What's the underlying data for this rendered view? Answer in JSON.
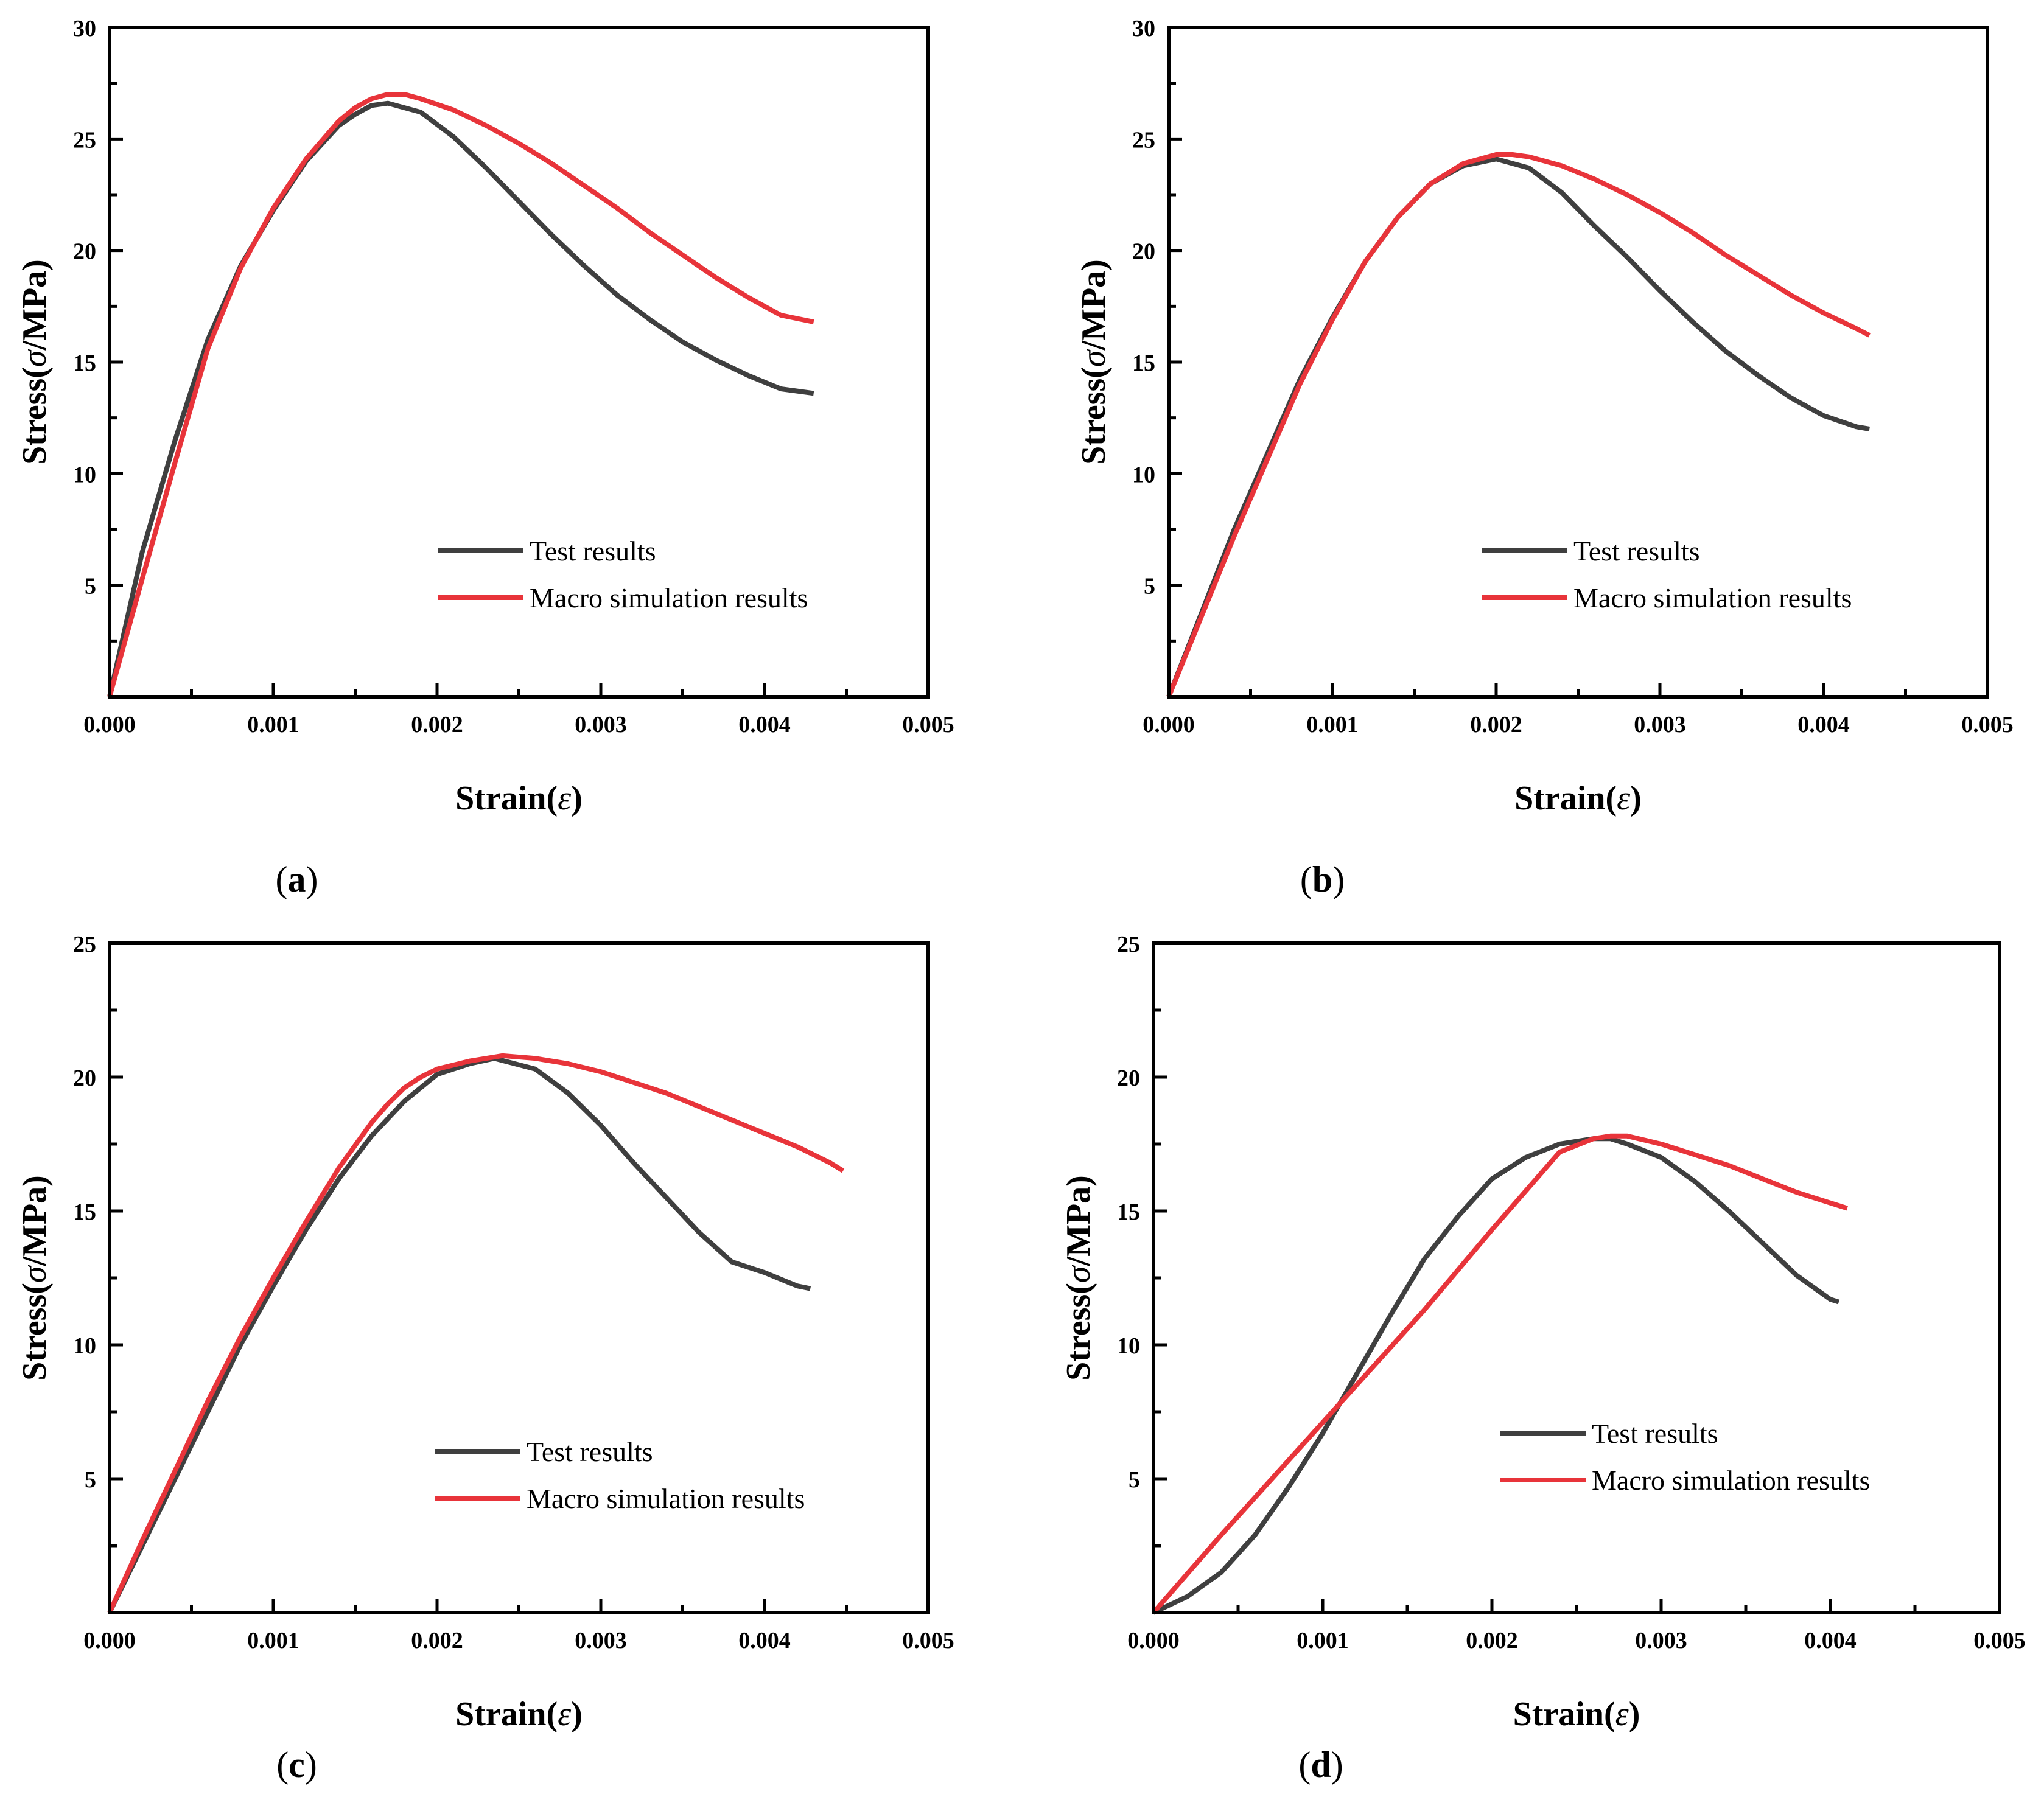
{
  "colors": {
    "test": "#3f3f3f",
    "macro": "#e8343a",
    "frame": "#000000"
  },
  "chart_data": [
    {
      "type": "line",
      "panel": "(a)",
      "panel_letter": "a",
      "xlabel": "Strain(",
      "xlabel_symbol": "ε",
      "ylabel": "Stress(",
      "ylabel_symbol": "σ",
      "ylabel_unit": "/MPa)",
      "xlim": [
        0,
        0.005
      ],
      "ylim": [
        0,
        30
      ],
      "xticks": [
        "0.000",
        "0.001",
        "0.002",
        "0.003",
        "0.004",
        "0.005"
      ],
      "yticks": [
        "5",
        "10",
        "15",
        "20",
        "25",
        "30"
      ],
      "legend_position": "center-right",
      "series": [
        {
          "name": "Test results",
          "color": "#3f3f3f",
          "x": [
            0,
            0.0002,
            0.0004,
            0.0006,
            0.0008,
            0.001,
            0.0012,
            0.0014,
            0.0015,
            0.0016,
            0.0017,
            0.0019,
            0.0021,
            0.0023,
            0.0025,
            0.0027,
            0.0029,
            0.0031,
            0.0033,
            0.0035,
            0.0037,
            0.0039,
            0.0041,
            0.0043
          ],
          "y": [
            0,
            6.5,
            11.5,
            16,
            19.3,
            21.8,
            24,
            25.6,
            26.1,
            26.5,
            26.6,
            26.2,
            25.1,
            23.7,
            22.2,
            20.7,
            19.3,
            18,
            16.9,
            15.9,
            15.1,
            14.4,
            13.8,
            13.6
          ]
        },
        {
          "name": "Macro simulation results",
          "color": "#e8343a",
          "x": [
            0,
            0.0002,
            0.0004,
            0.0006,
            0.0008,
            0.001,
            0.0012,
            0.0014,
            0.0015,
            0.0016,
            0.0017,
            0.0018,
            0.0019,
            0.0021,
            0.0023,
            0.0025,
            0.0027,
            0.0029,
            0.0031,
            0.0033,
            0.0035,
            0.0037,
            0.0039,
            0.0041,
            0.0043
          ],
          "y": [
            0,
            5.3,
            10.5,
            15.6,
            19.2,
            21.9,
            24.1,
            25.8,
            26.4,
            26.8,
            27,
            27,
            26.8,
            26.3,
            25.6,
            24.8,
            23.9,
            22.9,
            21.9,
            20.8,
            19.8,
            18.8,
            17.9,
            17.1,
            16.8
          ]
        }
      ]
    },
    {
      "type": "line",
      "panel": "(b)",
      "panel_letter": "b",
      "xlabel": "Strain(",
      "xlabel_symbol": "ε",
      "ylabel": "Stress(",
      "ylabel_symbol": "σ",
      "ylabel_unit": "/MPa)",
      "xlim": [
        0,
        0.005
      ],
      "ylim": [
        0,
        30
      ],
      "xticks": [
        "0.000",
        "0.001",
        "0.002",
        "0.003",
        "0.004",
        "0.005"
      ],
      "yticks": [
        "5",
        "10",
        "15",
        "20",
        "25",
        "30"
      ],
      "legend_position": "center-right",
      "series": [
        {
          "name": "Test results",
          "color": "#3f3f3f",
          "x": [
            0,
            0.0004,
            0.0008,
            0.001,
            0.0012,
            0.0014,
            0.0016,
            0.0018,
            0.002,
            0.0022,
            0.0024,
            0.0026,
            0.0028,
            0.003,
            0.0032,
            0.0034,
            0.0036,
            0.0038,
            0.004,
            0.0042,
            0.00428
          ],
          "y": [
            0,
            7.5,
            14.2,
            17,
            19.5,
            21.5,
            23,
            23.8,
            24.1,
            23.7,
            22.6,
            21.1,
            19.7,
            18.2,
            16.8,
            15.5,
            14.4,
            13.4,
            12.6,
            12.1,
            12.0
          ]
        },
        {
          "name": "Macro simulation results",
          "color": "#e8343a",
          "x": [
            0,
            0.0004,
            0.0008,
            0.001,
            0.0012,
            0.0014,
            0.0016,
            0.0018,
            0.002,
            0.0021,
            0.0022,
            0.0024,
            0.0026,
            0.0028,
            0.003,
            0.0032,
            0.0034,
            0.0036,
            0.0038,
            0.004,
            0.0042,
            0.00428
          ],
          "y": [
            0,
            7.2,
            14,
            16.9,
            19.5,
            21.5,
            23,
            23.9,
            24.3,
            24.3,
            24.2,
            23.8,
            23.2,
            22.5,
            21.7,
            20.8,
            19.8,
            18.9,
            18,
            17.2,
            16.5,
            16.2
          ]
        }
      ]
    },
    {
      "type": "line",
      "panel": "(c)",
      "panel_letter": "c",
      "xlabel": "Strain(",
      "xlabel_symbol": "ε",
      "ylabel": "Stress(",
      "ylabel_symbol": "σ",
      "ylabel_unit": "/MPa)",
      "xlim": [
        0,
        0.005
      ],
      "ylim": [
        0,
        25
      ],
      "xticks": [
        "0.000",
        "0.001",
        "0.002",
        "0.003",
        "0.004",
        "0.005"
      ],
      "yticks": [
        "5",
        "10",
        "15",
        "20",
        "25"
      ],
      "legend_position": "center-right",
      "series": [
        {
          "name": "Test results",
          "color": "#3f3f3f",
          "x": [
            0,
            0.0002,
            0.0004,
            0.0006,
            0.0008,
            0.001,
            0.0012,
            0.0014,
            0.0016,
            0.0018,
            0.002,
            0.0022,
            0.00235,
            0.0026,
            0.0028,
            0.003,
            0.0032,
            0.0034,
            0.0036,
            0.0038,
            0.004,
            0.0042,
            0.00428
          ],
          "y": [
            0,
            2.5,
            5,
            7.5,
            10,
            12.2,
            14.3,
            16.2,
            17.8,
            19.1,
            20.1,
            20.5,
            20.7,
            20.3,
            19.4,
            18.2,
            16.8,
            15.5,
            14.2,
            13.1,
            12.7,
            12.2,
            12.1
          ]
        },
        {
          "name": "Macro simulation results",
          "color": "#e8343a",
          "x": [
            0,
            0.0002,
            0.0004,
            0.0006,
            0.0008,
            0.001,
            0.0012,
            0.0014,
            0.0016,
            0.0017,
            0.0018,
            0.0019,
            0.002,
            0.0022,
            0.0024,
            0.0026,
            0.0028,
            0.003,
            0.0032,
            0.0034,
            0.0036,
            0.0038,
            0.004,
            0.0042,
            0.0044,
            0.00448
          ],
          "y": [
            0,
            2.7,
            5.3,
            7.9,
            10.3,
            12.5,
            14.6,
            16.6,
            18.3,
            19,
            19.6,
            20,
            20.3,
            20.6,
            20.8,
            20.7,
            20.5,
            20.2,
            19.8,
            19.4,
            18.9,
            18.4,
            17.9,
            17.4,
            16.8,
            16.5
          ]
        }
      ]
    },
    {
      "type": "line",
      "panel": "(d)",
      "panel_letter": "d",
      "xlabel": "Strain(",
      "xlabel_symbol": "ε",
      "ylabel": "Stress(",
      "ylabel_symbol": "σ",
      "ylabel_unit": "/MPa)",
      "xlim": [
        0,
        0.005
      ],
      "ylim": [
        0,
        25
      ],
      "xticks": [
        "0.000",
        "0.001",
        "0.002",
        "0.003",
        "0.004",
        "0.005"
      ],
      "yticks": [
        "5",
        "10",
        "15",
        "20",
        "25"
      ],
      "legend_position": "center-right",
      "series": [
        {
          "name": "Test results",
          "color": "#3f3f3f",
          "x": [
            0,
            0.0002,
            0.0004,
            0.0006,
            0.0008,
            0.001,
            0.0012,
            0.0014,
            0.0016,
            0.0018,
            0.002,
            0.0022,
            0.0024,
            0.0026,
            0.0027,
            0.0028,
            0.003,
            0.0032,
            0.0034,
            0.0036,
            0.0038,
            0.004,
            0.00405
          ],
          "y": [
            0,
            0.6,
            1.5,
            2.9,
            4.7,
            6.7,
            8.9,
            11.1,
            13.2,
            14.8,
            16.2,
            17,
            17.5,
            17.7,
            17.7,
            17.5,
            17,
            16.1,
            15,
            13.8,
            12.6,
            11.7,
            11.6
          ]
        },
        {
          "name": "Macro simulation results",
          "color": "#e8343a",
          "x": [
            0,
            0.0004,
            0.0008,
            0.0012,
            0.0016,
            0.002,
            0.0024,
            0.0026,
            0.0027,
            0.0028,
            0.003,
            0.0032,
            0.0034,
            0.0036,
            0.0038,
            0.004,
            0.0041
          ],
          "y": [
            0,
            2.9,
            5.7,
            8.5,
            11.3,
            14.3,
            17.2,
            17.7,
            17.8,
            17.8,
            17.5,
            17.1,
            16.7,
            16.2,
            15.7,
            15.3,
            15.1
          ]
        }
      ]
    }
  ]
}
